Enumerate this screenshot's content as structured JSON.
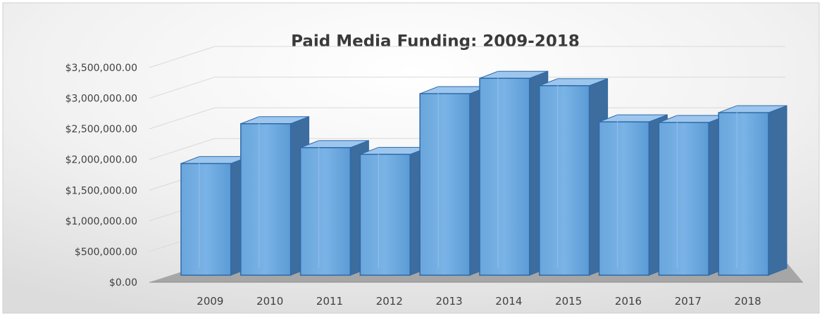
{
  "chart_data": {
    "type": "bar",
    "title": "Paid Media Funding: 2009-2018",
    "xlabel": "",
    "ylabel": "",
    "categories": [
      "2009",
      "2010",
      "2011",
      "2012",
      "2013",
      "2014",
      "2015",
      "2016",
      "2017",
      "2018"
    ],
    "values": [
      1820000,
      2470000,
      2080000,
      1970000,
      2960000,
      3210000,
      3090000,
      2500000,
      2490000,
      2650000
    ],
    "ylim": [
      0,
      3500000
    ],
    "yticks": [
      0,
      500000,
      1000000,
      1500000,
      2000000,
      2500000,
      3000000,
      3500000
    ],
    "ytick_labels": [
      "$0.00",
      "$500,000.00",
      "$1,000,000.00",
      "$1,500,000.00",
      "$2,000,000.00",
      "$2,500,000.00",
      "$3,000,000.00",
      "$3,500,000.00"
    ],
    "grid": true,
    "legend": "none",
    "style": "3d",
    "colors": {
      "bar_front": "#5b9bd5",
      "bar_top": "#9dc6ee",
      "bar_side": "#3c6d9e",
      "bar_edge": "#2f6aa8",
      "floor": "#a6a6a6",
      "background": "#ececec"
    }
  }
}
